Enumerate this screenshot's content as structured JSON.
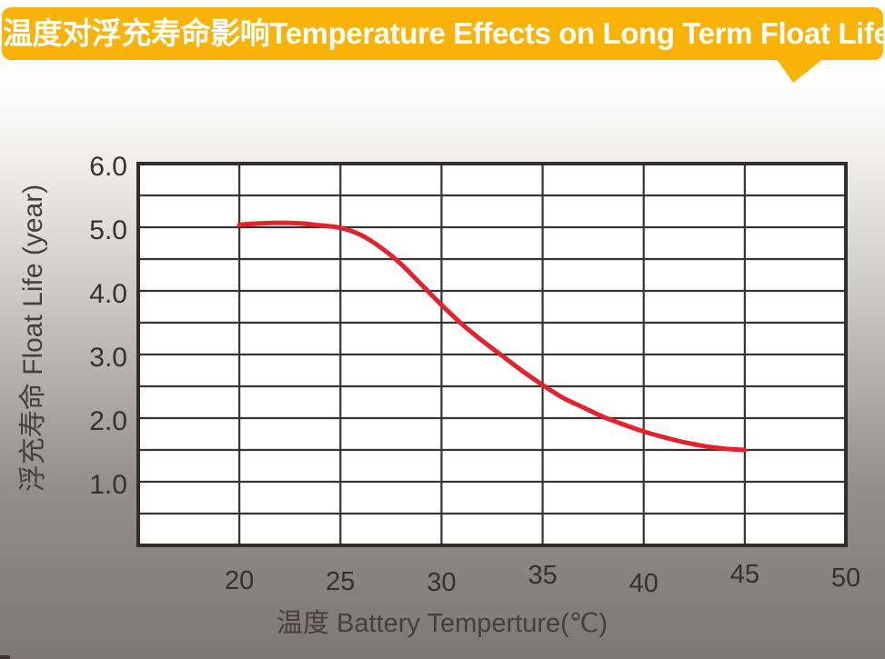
{
  "banner": {
    "title": "温度对浮充寿命影响Temperature Effects on Long Term Float Life"
  },
  "colors": {
    "banner_bg": "#F9B207",
    "banner_text": "#FFFFFF",
    "plot_bg": "#FFFFFF",
    "grid_line": "#383230",
    "plot_border": "#332E2C",
    "curve": "#E2232B",
    "tick_text": "#363030",
    "axis_title_text": "#453E3B"
  },
  "chart_data": {
    "type": "line",
    "title": "温度对浮充寿命影响Temperature Effects on Long Term Float Life",
    "xlabel": "温度  Battery  Temperture(℃)",
    "ylabel": "浮充寿命  Float Life (year)",
    "xlim": [
      15,
      50
    ],
    "ylim": [
      0,
      6
    ],
    "x_tick_values": [
      20,
      25,
      30,
      35,
      40,
      45,
      50
    ],
    "x_tick_labels": [
      "20",
      "25",
      "30",
      "35",
      "40",
      "45",
      "50"
    ],
    "y_tick_values": [
      1,
      2,
      3,
      4,
      5,
      6
    ],
    "y_tick_labels": [
      "1.0",
      "2.0",
      "3.0",
      "4.0",
      "5.0",
      "6.0"
    ],
    "x_grid_step": 5,
    "y_grid_step": 0.5,
    "grid": "on",
    "legend": "none",
    "series": [
      {
        "name": "float-life-vs-temperature",
        "color": "#E2232B",
        "points": [
          [
            20,
            5.04
          ],
          [
            21,
            5.06
          ],
          [
            22,
            5.07
          ],
          [
            23,
            5.06
          ],
          [
            24,
            5.03
          ],
          [
            25,
            4.99
          ],
          [
            26,
            4.88
          ],
          [
            27,
            4.68
          ],
          [
            28,
            4.42
          ],
          [
            29,
            4.1
          ],
          [
            30,
            3.78
          ],
          [
            31,
            3.48
          ],
          [
            32,
            3.22
          ],
          [
            33,
            2.98
          ],
          [
            34,
            2.74
          ],
          [
            35,
            2.52
          ],
          [
            36,
            2.32
          ],
          [
            37,
            2.17
          ],
          [
            38,
            2.02
          ],
          [
            39,
            1.9
          ],
          [
            40,
            1.79
          ],
          [
            41,
            1.7
          ],
          [
            42,
            1.62
          ],
          [
            43,
            1.56
          ],
          [
            44,
            1.52
          ],
          [
            45,
            1.5
          ]
        ]
      }
    ]
  }
}
